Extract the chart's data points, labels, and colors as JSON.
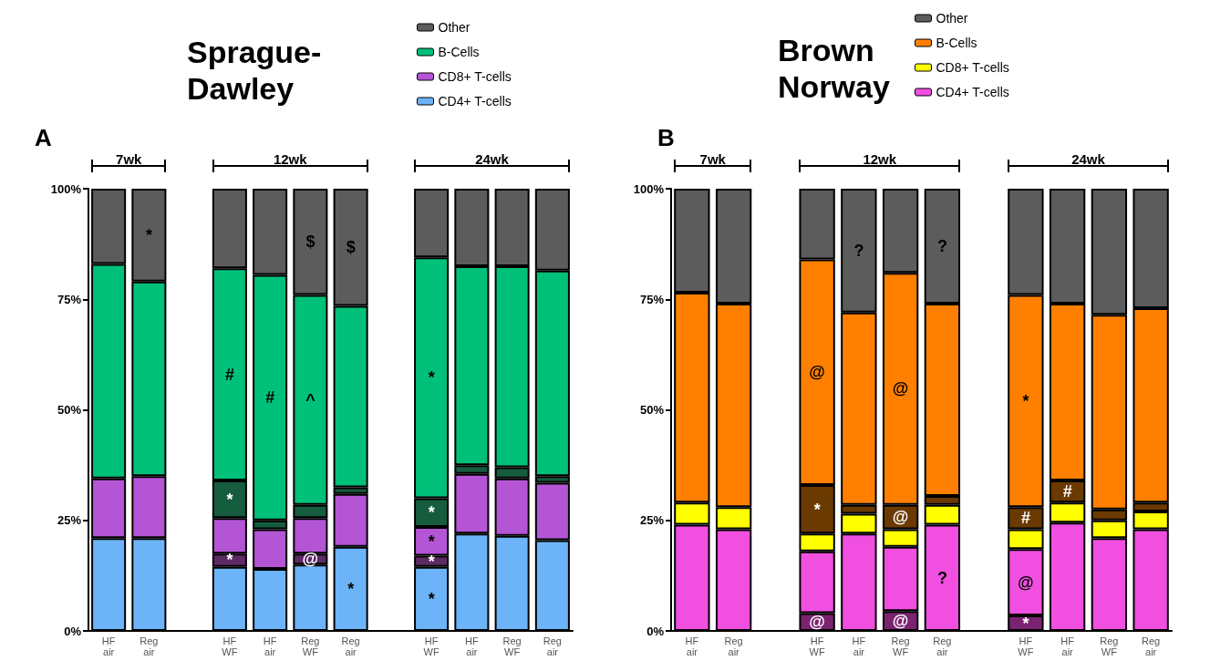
{
  "chart_data": [
    {
      "type": "bar",
      "title": "Sprague-Dawley",
      "stacked": true,
      "categories": [
        "HF air",
        "Reg air",
        null,
        "HF WF",
        "HF air",
        "Reg WF",
        "Reg air",
        null,
        "HF WF",
        "HF air",
        "Reg WF",
        "Reg air"
      ],
      "series": [
        {
          "name": "CD4+ T-cells",
          "color": "#6cb4f7",
          "values": [
            21,
            21,
            null,
            14.5,
            14,
            15,
            19,
            null,
            14.5,
            22,
            21.5,
            20.5
          ],
          "value_labels": [
            null,
            null,
            null,
            null,
            null,
            null,
            "*",
            null,
            "*",
            null,
            null,
            null
          ]
        },
        {
          "color": "#5e2a66",
          "values": [
            null,
            null,
            null,
            3,
            null,
            2.5,
            null,
            null,
            2.5,
            null,
            null,
            null
          ],
          "value_labels": [
            null,
            null,
            null,
            "*",
            null,
            "@",
            null,
            null,
            "*",
            null,
            null,
            null
          ]
        },
        {
          "name": "CD8+ T-cells",
          "color": "#b455d6",
          "values": [
            13.5,
            14,
            null,
            8,
            9,
            8,
            12,
            null,
            6.5,
            13.5,
            13,
            13
          ],
          "value_labels": [
            null,
            null,
            null,
            null,
            null,
            null,
            null,
            null,
            "*",
            null,
            null,
            null
          ]
        },
        {
          "color": "#165c3e",
          "values": [
            null,
            null,
            null,
            8.5,
            2,
            3,
            1.5,
            null,
            6.5,
            2,
            2.5,
            1.5
          ],
          "value_labels": [
            null,
            null,
            null,
            "*",
            null,
            null,
            null,
            null,
            "*",
            null,
            null,
            null
          ]
        },
        {
          "name": "B-Cells",
          "color": "#00c07a",
          "values": [
            48.5,
            44,
            null,
            48,
            55.5,
            47.5,
            41,
            null,
            54.5,
            45,
            45.5,
            46.5
          ],
          "value_labels": [
            null,
            null,
            null,
            "#",
            "#",
            "^",
            null,
            null,
            "*",
            null,
            null,
            null
          ]
        },
        {
          "name": "Other",
          "color": "#5c5c5c",
          "values": [
            17,
            21,
            null,
            18,
            19.5,
            24,
            26.5,
            null,
            15.5,
            17.5,
            17.5,
            18.5
          ],
          "value_labels": [
            null,
            "*",
            null,
            null,
            null,
            "$",
            "$",
            null,
            null,
            null,
            null,
            null
          ]
        }
      ],
      "ylim": [
        0,
        100
      ],
      "yticks": [
        {
          "value": 0,
          "label": "0%"
        },
        {
          "value": 25,
          "label": "25%"
        },
        {
          "value": 50,
          "label": "50%"
        },
        {
          "value": 75,
          "label": "75%"
        },
        {
          "value": 100,
          "label": "100%"
        }
      ],
      "grid": false,
      "legend": "top right",
      "annotations": [
        "A",
        "7wk",
        "12wk",
        "24wk"
      ]
    },
    {
      "type": "bar",
      "title": "Brown Norway",
      "stacked": true,
      "categories": [
        "HF air",
        "Reg air",
        null,
        "HF WF",
        "HF air",
        "Reg WF",
        "Reg air",
        null,
        "HF WF",
        "HF air",
        "Reg WF",
        "Reg air"
      ],
      "series": [
        {
          "color": "#7a2370",
          "values": [
            null,
            null,
            null,
            4,
            null,
            4.5,
            null,
            null,
            3.5,
            null,
            null,
            null
          ],
          "value_labels": [
            null,
            null,
            null,
            "@",
            null,
            "@",
            null,
            null,
            "*",
            null,
            null,
            null
          ]
        },
        {
          "name": "CD4+ T-cells",
          "color": "#f04fe0",
          "values": [
            24,
            23,
            null,
            14,
            22,
            14.5,
            24,
            null,
            15,
            24.5,
            21,
            23
          ],
          "value_labels": [
            null,
            null,
            null,
            null,
            null,
            null,
            "?",
            null,
            "@",
            null,
            null,
            null
          ]
        },
        {
          "name": "CD8+ T-cells",
          "color": "#ffff00",
          "values": [
            5,
            5,
            null,
            4,
            4.5,
            4,
            4.5,
            null,
            4.5,
            4.5,
            4,
            4
          ]
        },
        {
          "color": "#6b3a00",
          "values": [
            null,
            null,
            null,
            11,
            2,
            5.5,
            2,
            null,
            5,
            5,
            2.5,
            2
          ],
          "value_labels": [
            null,
            null,
            null,
            "*",
            null,
            "@",
            null,
            null,
            "#",
            "#",
            null,
            null
          ]
        },
        {
          "name": "B-Cells",
          "color": "#ff8000",
          "values": [
            47.5,
            46,
            null,
            51,
            43.5,
            52.5,
            43.5,
            null,
            48,
            40,
            44,
            44
          ],
          "value_labels": [
            null,
            null,
            null,
            "@",
            null,
            "@",
            null,
            null,
            "*",
            null,
            null,
            null
          ]
        },
        {
          "name": "Other",
          "color": "#5c5c5c",
          "values": [
            23.5,
            26,
            null,
            16,
            28,
            19,
            26,
            null,
            24,
            26,
            28.5,
            27
          ],
          "value_labels": [
            null,
            null,
            null,
            null,
            "?",
            null,
            "?",
            null,
            null,
            null,
            null,
            null
          ]
        }
      ],
      "ylim": [
        0,
        100
      ],
      "yticks": [
        {
          "value": 0,
          "label": "0%"
        },
        {
          "value": 25,
          "label": "25%"
        },
        {
          "value": 50,
          "label": "50%"
        },
        {
          "value": 75,
          "label": "75%"
        },
        {
          "value": 100,
          "label": "100%"
        }
      ],
      "grid": false,
      "legend": "top right",
      "annotations": [
        "B",
        "7wk",
        "12wk",
        "24wk"
      ]
    }
  ]
}
